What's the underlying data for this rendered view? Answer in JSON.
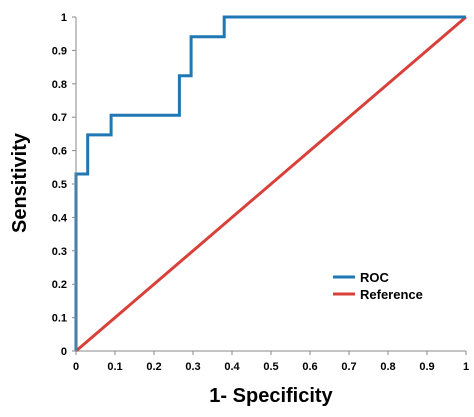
{
  "chart_data": {
    "type": "line",
    "xlabel": "1- Specificity",
    "ylabel": "Sensitivity",
    "xlim": [
      0,
      1
    ],
    "ylim": [
      0,
      1
    ],
    "x_ticks": [
      "0",
      "0.1",
      "0.2",
      "0.3",
      "0.4",
      "0.5",
      "0.6",
      "0.7",
      "0.8",
      "0.9",
      "1"
    ],
    "y_ticks": [
      "0",
      "0.1",
      "0.2",
      "0.3",
      "0.4",
      "0.5",
      "0.6",
      "0.7",
      "0.8",
      "0.9",
      "1"
    ],
    "grid": false,
    "legend_position": "bottom-right",
    "series": [
      {
        "name": "ROC",
        "color": "#1f77b4",
        "x": [
          0,
          0,
          0.03,
          0.03,
          0.09,
          0.09,
          0.265,
          0.265,
          0.295,
          0.295,
          0.38,
          0.38,
          1
        ],
        "y": [
          0,
          0.53,
          0.53,
          0.647,
          0.647,
          0.706,
          0.706,
          0.824,
          0.824,
          0.941,
          0.941,
          1,
          1
        ]
      },
      {
        "name": "Reference",
        "color": "#d9403a",
        "x": [
          0,
          1
        ],
        "y": [
          0,
          1
        ]
      }
    ]
  }
}
